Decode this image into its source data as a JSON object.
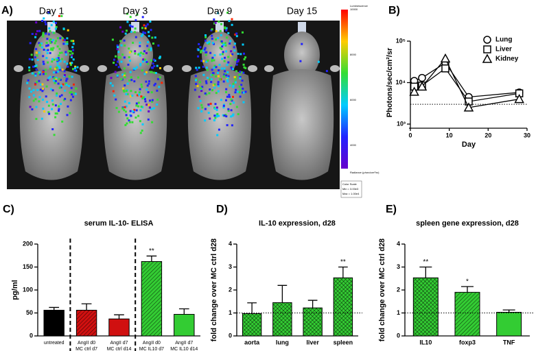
{
  "image_panel": {
    "panel": "A)",
    "days": [
      "Day 1",
      "Day 3",
      "Day 9",
      "Day 15"
    ],
    "colorbar": {
      "title": "Luminescence",
      "ticks": [
        10000,
        8000,
        6000,
        4000
      ],
      "unit_label": "Radiance (p/sec/cm²/sr)",
      "scale_title": "Color Scale",
      "min_label": "Min = 3.00e3",
      "max_label": "Max = 1.00e4"
    }
  },
  "chart_data": [
    {
      "panel": "B)",
      "type": "line",
      "xlabel": "Day",
      "ylabel": "Photons/sec/cm²/sr",
      "log_y": true,
      "x": [
        1,
        3,
        9,
        15,
        28
      ],
      "xlim": [
        0,
        30
      ],
      "xticks": [
        0,
        10,
        20,
        30
      ],
      "ylim": [
        1000,
        100000
      ],
      "yticks": [
        {
          "value": 1000,
          "label": "10³"
        },
        {
          "value": 10000,
          "label": "10⁴"
        },
        {
          "value": 100000,
          "label": "10⁵"
        }
      ],
      "hline": 3000,
      "legend": "top-right",
      "series": [
        {
          "name": "Lung",
          "marker": "circle",
          "color": "#000000",
          "values": [
            11000,
            13000,
            30000,
            4500,
            5800
          ]
        },
        {
          "name": "Liver",
          "marker": "square",
          "color": "#000000",
          "values": [
            8000,
            8500,
            22000,
            3500,
            5500
          ]
        },
        {
          "name": "Kidney",
          "marker": "triangle",
          "color": "#000000",
          "values": [
            6000,
            8000,
            38000,
            2500,
            4000
          ]
        }
      ]
    },
    {
      "panel": "C)",
      "type": "bar",
      "title": "serum IL-10- ELISA",
      "ylabel": "pg/ml",
      "categories": [
        [
          "untreated"
        ],
        [
          "AngII d0",
          "MC ctrl d7"
        ],
        [
          "AngII d7",
          "MC ctrl d14"
        ],
        [
          "AngII d0",
          "MC IL10 d7"
        ],
        [
          "AngII d7",
          "MC IL10 d14"
        ]
      ],
      "values": [
        56,
        56,
        37,
        162,
        47
      ],
      "errors": [
        6,
        14,
        9,
        12,
        12
      ],
      "colors": [
        "#000000",
        "#d01010",
        "#d01010",
        "#33cc33",
        "#33cc33"
      ],
      "patterns": [
        "solid",
        "hatch",
        "solid",
        "hatch",
        "solid"
      ],
      "significance": [
        null,
        null,
        null,
        "**",
        null
      ],
      "ylim": [
        0,
        200
      ],
      "yticks": [
        0,
        50,
        100,
        150,
        200
      ]
    },
    {
      "panel": "D)",
      "type": "bar",
      "title": "IL-10 expression, d28",
      "ylabel": "fold change over MC ctrl d28",
      "categories": [
        [
          "aorta"
        ],
        [
          "lung"
        ],
        [
          "liver"
        ],
        [
          "spleen"
        ]
      ],
      "values": [
        0.97,
        1.45,
        1.22,
        2.53
      ],
      "errors": [
        0.47,
        0.75,
        0.33,
        0.47
      ],
      "colors": [
        "#33cc33",
        "#33cc33",
        "#33cc33",
        "#33cc33"
      ],
      "patterns": [
        "crosshatch",
        "crosshatch",
        "crosshatch",
        "crosshatch"
      ],
      "significance": [
        null,
        null,
        null,
        "**"
      ],
      "hline": 1,
      "ylim": [
        0,
        4
      ],
      "yticks": [
        0,
        1,
        2,
        3,
        4
      ]
    },
    {
      "panel": "E)",
      "type": "bar",
      "title": "spleen gene expression, d28",
      "ylabel": "fold change over MC ctrl d28",
      "categories": [
        [
          "IL10"
        ],
        [
          "foxp3"
        ],
        [
          "TNF"
        ]
      ],
      "values": [
        2.53,
        1.9,
        1.03
      ],
      "errors": [
        0.47,
        0.25,
        0.1
      ],
      "colors": [
        "#33cc33",
        "#33cc33",
        "#33cc33"
      ],
      "patterns": [
        "crosshatch",
        "hatch",
        "solid"
      ],
      "significance": [
        "**",
        "*",
        null
      ],
      "hline": 1,
      "ylim": [
        0,
        4
      ],
      "yticks": [
        0,
        1,
        2,
        3,
        4
      ]
    }
  ]
}
